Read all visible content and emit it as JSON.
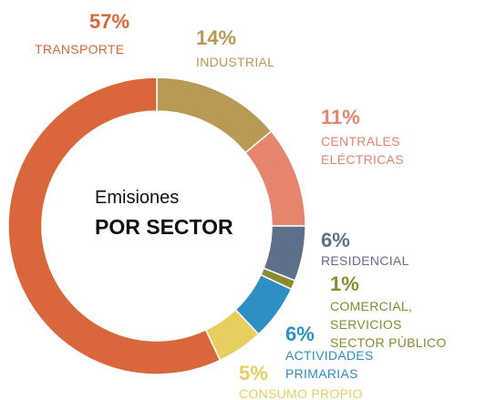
{
  "chart_data": {
    "type": "donut",
    "title": "Emisiones",
    "subtitle": "POR SECTOR",
    "categories": [
      "INDUSTRIAL",
      "CENTRALES\nELÉCTRICAS",
      "RESIDENCIAL",
      "COMERCIAL, SERVICIOS\nSECTOR PÚBLICO",
      "ACTIVIDADES\nPRIMARIAS",
      "CONSUMO PROPIO",
      "TRANSPORTE"
    ],
    "values": [
      14,
      11,
      6,
      1,
      6,
      5,
      57
    ],
    "value_labels": [
      "14%",
      "11%",
      "6%",
      "1%",
      "6%",
      "5%",
      "57%"
    ],
    "colors": [
      "#b89a55",
      "#e5856f",
      "#5e7089",
      "#8a8a2e",
      "#2e8fc4",
      "#e6cf5e",
      "#d9673b"
    ]
  }
}
